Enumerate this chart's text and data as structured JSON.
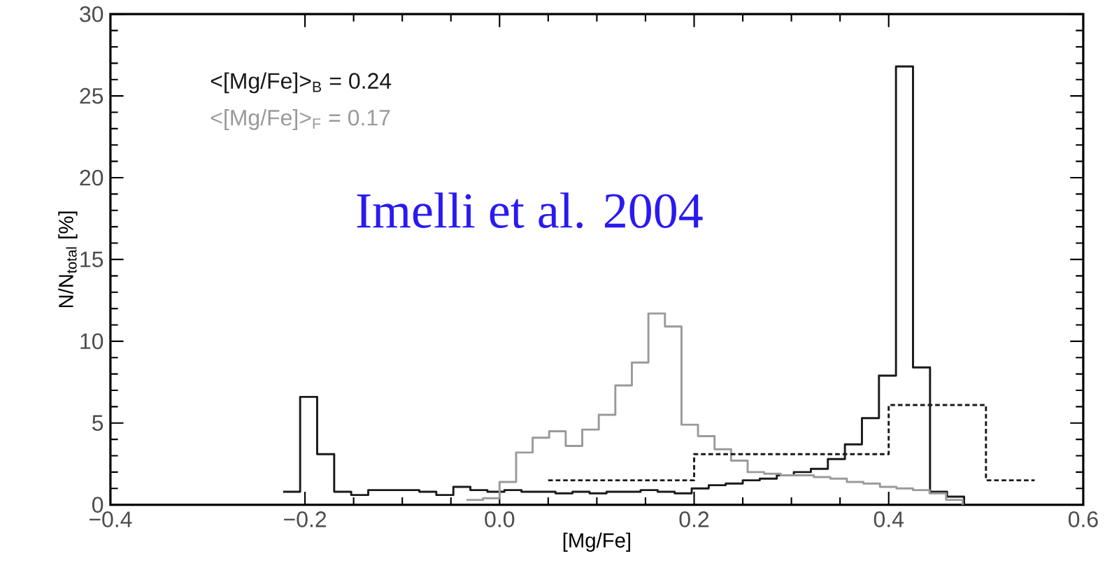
{
  "chart_data": {
    "type": "step",
    "xlabel": "[Mg/Fe]",
    "ylabel": "N/N$_{total}$ [%]",
    "xlim": [
      -0.4,
      0.6
    ],
    "xticks": [
      {
        "value": -0.4,
        "label": "−0.4"
      },
      {
        "value": -0.2,
        "label": "−0.2"
      },
      {
        "value": 0.0,
        "label": "0.0"
      },
      {
        "value": 0.2,
        "label": "0.2"
      },
      {
        "value": 0.4,
        "label": "0.4"
      },
      {
        "value": 0.6,
        "label": "0.6"
      }
    ],
    "ylim": [
      0,
      30
    ],
    "yticks": [
      {
        "value": 0,
        "label": "0"
      },
      {
        "value": 5,
        "label": "5"
      },
      {
        "value": 10,
        "label": "10"
      },
      {
        "value": 15,
        "label": "15"
      },
      {
        "value": 20,
        "label": "20"
      },
      {
        "value": 25,
        "label": "25"
      },
      {
        "value": 30,
        "label": "30"
      }
    ],
    "annotations": [
      "Imelli et al. 2004"
    ],
    "series": [
      {
        "name": "<[Mg/Fe]>$_{B}$ = 0.24",
        "color": "#1a1a1a",
        "line_style": "solid",
        "x": [
          -0.2225,
          -0.205,
          -0.1875,
          -0.17,
          -0.1525,
          -0.135,
          -0.1175,
          -0.1,
          -0.0825,
          -0.065,
          -0.0475,
          -0.03,
          -0.0125,
          0.005,
          0.0225,
          0.04,
          0.0575,
          0.075,
          0.0925,
          0.11,
          0.1275,
          0.145,
          0.1625,
          0.18,
          0.1975,
          0.215,
          0.2325,
          0.25,
          0.2675,
          0.285,
          0.3025,
          0.32,
          0.3375,
          0.355,
          0.3725,
          0.39,
          0.4075,
          0.425,
          0.4425,
          0.46,
          0.4775
        ],
        "values": [
          0.8,
          6.6,
          3.1,
          0.8,
          0.6,
          0.9,
          0.9,
          0.9,
          0.8,
          0.6,
          1.1,
          0.9,
          0.8,
          0.9,
          0.8,
          0.8,
          0.7,
          0.8,
          0.7,
          0.8,
          0.8,
          0.9,
          0.8,
          0.7,
          1.0,
          1.2,
          1.3,
          1.5,
          1.6,
          1.8,
          2.0,
          2.2,
          2.8,
          3.7,
          5.3,
          7.9,
          26.8,
          8.4,
          0.8,
          0.5,
          0
        ]
      },
      {
        "name": "<[Mg/Fe]>$_{F}$ = 0.17",
        "color": "#9a9a9a",
        "line_style": "solid",
        "x": [
          -0.034,
          -0.017,
          0.0,
          0.017,
          0.034,
          0.051,
          0.068,
          0.085,
          0.102,
          0.119,
          0.136,
          0.153,
          0.17,
          0.187,
          0.204,
          0.221,
          0.238,
          0.255,
          0.272,
          0.289,
          0.306,
          0.323,
          0.34,
          0.357,
          0.374,
          0.391,
          0.408,
          0.425,
          0.442,
          0.459,
          0.476
        ],
        "values": [
          0.3,
          0.4,
          1.4,
          3.2,
          4.1,
          4.5,
          3.6,
          4.6,
          5.5,
          7.3,
          8.7,
          11.7,
          10.9,
          4.9,
          4.2,
          3.4,
          2.7,
          2.0,
          1.9,
          1.8,
          1.8,
          1.7,
          1.6,
          1.4,
          1.3,
          1.1,
          1.0,
          0.9,
          0.7,
          0.3,
          0
        ]
      },
      {
        "color": "#1a1a1a",
        "line_style": "dashed",
        "x": [
          0.05,
          0.2,
          0.4,
          0.5,
          0.55
        ],
        "values": [
          1.5,
          3.1,
          6.1,
          1.5,
          1.5
        ]
      }
    ]
  }
}
